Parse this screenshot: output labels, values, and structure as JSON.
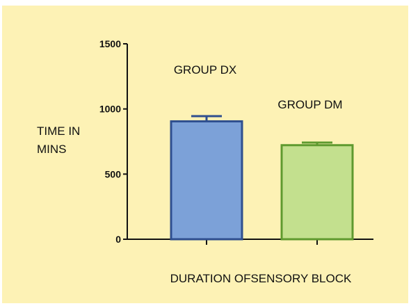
{
  "chart_data": {
    "type": "bar",
    "categories": [
      "GROUP DX",
      "GROUP DM"
    ],
    "values": [
      905,
      722
    ],
    "errors": [
      40,
      20
    ],
    "ylim": [
      0,
      1500
    ],
    "yticks": [
      0,
      500,
      1000,
      1500
    ],
    "ylabel_lines": [
      "TIME IN",
      "MINS"
    ],
    "xlabel": "DURATION OFSENSORY BLOCK",
    "grid": false,
    "colors": {
      "background": "#fdf2b5",
      "bar_fill": [
        "#7ca1d8",
        "#c3e08e"
      ],
      "bar_stroke": [
        "#2f4f8f",
        "#5f9a2f"
      ]
    }
  }
}
